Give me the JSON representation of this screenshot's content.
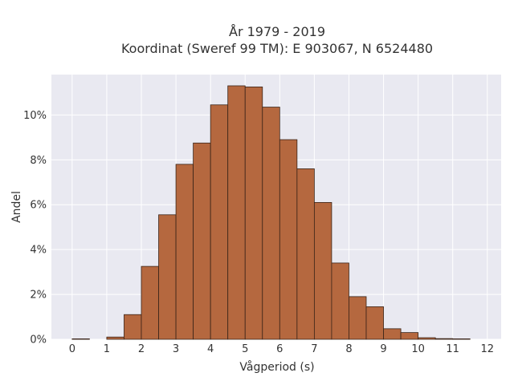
{
  "chart_data": {
    "type": "bar",
    "title_line1": "År 1979 - 2019",
    "title_line2": "Koordinat (Sweref 99 TM): E 903067, N 6524480",
    "xlabel": "Vågperiod (s)",
    "ylabel": "Andel",
    "xlim": [
      -0.6,
      12.4
    ],
    "ylim": [
      0,
      11.8
    ],
    "grid": true,
    "x_ticks": [
      0,
      1,
      2,
      3,
      4,
      5,
      6,
      7,
      8,
      9,
      10,
      11,
      12
    ],
    "x_tick_labels": [
      "0",
      "1",
      "2",
      "3",
      "4",
      "5",
      "6",
      "7",
      "8",
      "9",
      "10",
      "11",
      "12"
    ],
    "y_ticks": [
      0,
      2,
      4,
      6,
      8,
      10
    ],
    "y_tick_labels": [
      "0%",
      "2%",
      "4%",
      "6%",
      "8%",
      "10%"
    ],
    "bin_width": 0.5,
    "bin_starts": [
      0,
      1,
      1.5,
      2,
      2.5,
      3,
      3.5,
      4,
      4.5,
      5,
      5.5,
      6,
      6.5,
      7,
      7.5,
      8,
      8.5,
      9,
      9.5,
      10,
      10.5,
      11
    ],
    "values": [
      0.02,
      0.1,
      1.1,
      3.25,
      5.55,
      7.8,
      8.75,
      10.45,
      11.3,
      11.25,
      10.35,
      8.9,
      7.6,
      6.1,
      3.4,
      1.9,
      1.45,
      0.47,
      0.3,
      0.07,
      0.03,
      0.02
    ],
    "colors": {
      "bar_fill": "#b5683f",
      "bar_edge": "#3a2418",
      "plot_bg": "#e9e9f1",
      "grid": "#ffffff"
    }
  }
}
